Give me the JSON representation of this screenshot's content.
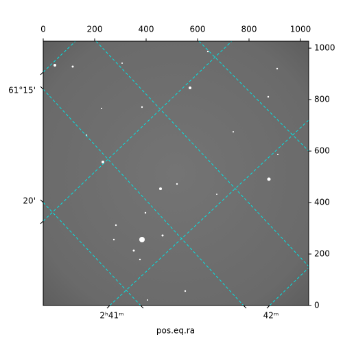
{
  "chart_data": {
    "type": "image",
    "x_label": "pos.eq.ra",
    "world_x_labels": [
      "2ʰ41ᵐ",
      "42ᵐ"
    ],
    "world_y_labels": [
      "61°15'",
      "20'"
    ],
    "xlim": [
      0,
      1032
    ],
    "xticks": [
      0,
      200,
      400,
      600,
      800,
      1000
    ],
    "ylim": [
      0,
      1027
    ],
    "yticks": [
      0,
      200,
      400,
      600,
      800,
      1000
    ],
    "grid_color": "#00e5e5"
  }
}
